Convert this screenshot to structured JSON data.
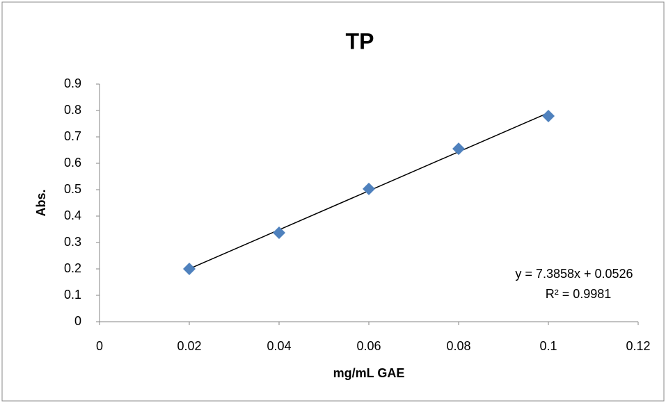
{
  "chart_data": {
    "type": "scatter",
    "title": "TP",
    "x_label": "mg/mL GAE",
    "y_label": "Abs.",
    "series": [
      {
        "name": "TP",
        "color": "#4f81bd",
        "x": [
          0.02,
          0.04,
          0.06,
          0.08,
          0.1
        ],
        "values": [
          0.2,
          0.337,
          0.503,
          0.655,
          0.779
        ]
      }
    ],
    "trendline": {
      "equation": "y = 7.3858x + 0.0526",
      "r_squared": "R² = 0.9981",
      "slope": 7.3858,
      "intercept": 0.0526,
      "color": "#000000"
    },
    "xlim": [
      0,
      0.12
    ],
    "xticks": [
      0,
      0.02,
      0.04,
      0.06,
      0.08,
      0.1,
      0.12
    ],
    "ylim": [
      0,
      0.9
    ],
    "yticks": [
      0,
      0.1,
      0.2,
      0.3,
      0.4,
      0.5,
      0.6,
      0.7,
      0.8,
      0.9
    ],
    "grid": false,
    "legend": false
  }
}
